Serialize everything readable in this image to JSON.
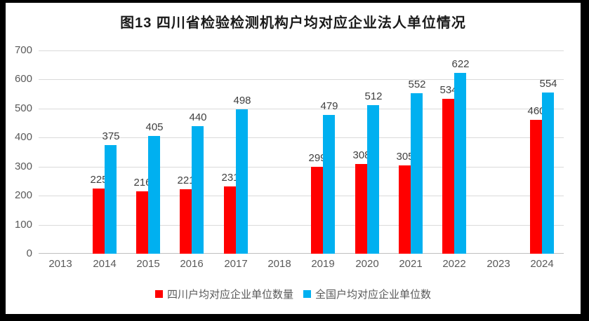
{
  "chart_data": {
    "type": "bar",
    "title": "图13 四川省检验检测机构户均对应企业法人单位情况",
    "categories": [
      "2013",
      "2014",
      "2015",
      "2016",
      "2017",
      "2018",
      "2019",
      "2020",
      "2021",
      "2022",
      "2023",
      "2024"
    ],
    "series": [
      {
        "name": "四川户均对应企业单位数量",
        "color": "#ff0000",
        "values": [
          null,
          225,
          216,
          221,
          231,
          null,
          299,
          308,
          305,
          534,
          null,
          460
        ]
      },
      {
        "name": "全国户均对应企业单位数",
        "color": "#00b0f0",
        "values": [
          null,
          375,
          405,
          440,
          498,
          null,
          479,
          512,
          552,
          622,
          null,
          554
        ]
      }
    ],
    "ylim": [
      0,
      700
    ],
    "ytick_interval": 100,
    "yticks": [
      "0",
      "100",
      "200",
      "300",
      "400",
      "500",
      "600",
      "700"
    ],
    "grid": true,
    "legend_position": "bottom",
    "colors": {
      "gridline": "#dadada",
      "axis_text": "#595959",
      "data_label": "#404040",
      "frame": "#000000",
      "background": "#ffffff"
    }
  }
}
